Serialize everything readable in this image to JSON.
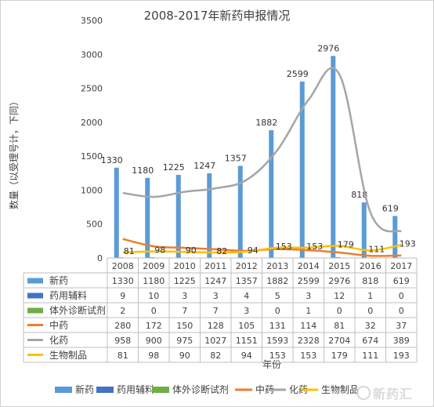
{
  "watermark": "新药汇",
  "chart_data": {
    "type": "bar",
    "title": "2008-2017年新药申报情况",
    "xlabel": "年份",
    "ylabel": "数量（以受理号计，下同）",
    "ylim": [
      0,
      3500
    ],
    "yticks": [
      0,
      500,
      1000,
      1500,
      2000,
      2500,
      3000,
      3500
    ],
    "categories": [
      "2008",
      "2009",
      "2010",
      "2011",
      "2012",
      "2013",
      "2014",
      "2015",
      "2016",
      "2017"
    ],
    "grid": false,
    "legend_position": "bottom",
    "series": [
      {
        "name": "新药",
        "type": "bar",
        "color": "#5B9BD5",
        "data_labels": true,
        "values": [
          1330,
          1180,
          1225,
          1247,
          1357,
          1882,
          2599,
          2976,
          818,
          619
        ]
      },
      {
        "name": "药用辅料",
        "type": "bar",
        "color": "#4472C4",
        "data_labels": false,
        "values": [
          9,
          10,
          3,
          3,
          4,
          5,
          3,
          12,
          1,
          0
        ]
      },
      {
        "name": "体外诊断试剂",
        "type": "bar",
        "color": "#70AD47",
        "data_labels": false,
        "values": [
          2,
          0,
          7,
          7,
          3,
          0,
          1,
          0,
          0,
          0
        ]
      },
      {
        "name": "中药",
        "type": "line",
        "color": "#ED7D31",
        "data_labels": false,
        "values": [
          280,
          172,
          150,
          128,
          105,
          131,
          114,
          81,
          32,
          37
        ]
      },
      {
        "name": "化药",
        "type": "line",
        "color": "#A5A5A5",
        "data_labels": false,
        "values": [
          958,
          900,
          975,
          1027,
          1151,
          1593,
          2328,
          2704,
          674,
          389
        ]
      },
      {
        "name": "生物制品",
        "type": "line",
        "color": "#FFC000",
        "data_labels": true,
        "values": [
          81,
          98,
          90,
          82,
          94,
          153,
          153,
          179,
          111,
          193
        ]
      }
    ]
  }
}
